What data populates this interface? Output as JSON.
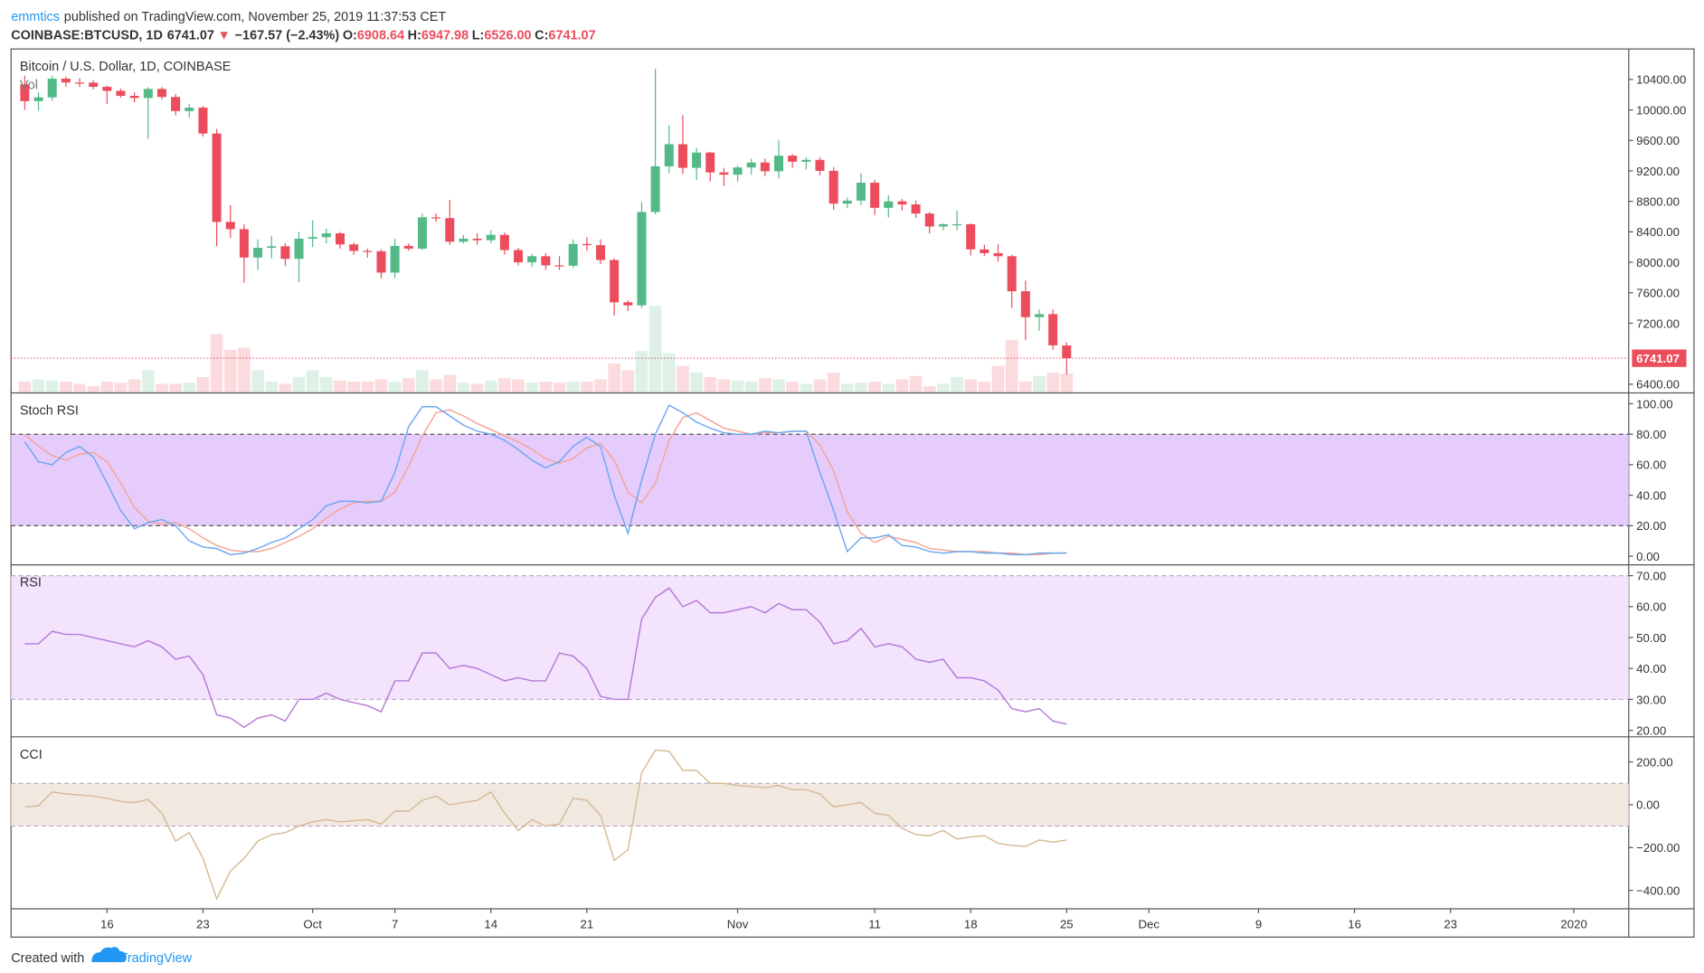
{
  "header": {
    "author": "emmtics",
    "published": "published on TradingView.com, November 25, 2019 11:37:53 CET",
    "symbol": "COINBASE:BTCUSD, 1D",
    "last": "6741.07",
    "arrow": "▼",
    "change": "−167.57 (−2.43%)",
    "ohlc": [
      {
        "key": "O:",
        "value": "6908.64"
      },
      {
        "key": "H:",
        "value": "6947.98"
      },
      {
        "key": "L:",
        "value": "6526.00"
      },
      {
        "key": "C:",
        "value": "6741.07"
      }
    ]
  },
  "chart_data": [
    {
      "type": "candlestick",
      "title": "Bitcoin / U.S. Dollar, 1D, COINBASE",
      "volume_title": "Vol",
      "x": [
        "2019-09-10",
        "2019-09-11",
        "2019-09-12",
        "2019-09-13",
        "2019-09-14",
        "2019-09-15",
        "2019-09-16",
        "2019-09-17",
        "2019-09-18",
        "2019-09-19",
        "2019-09-20",
        "2019-09-21",
        "2019-09-22",
        "2019-09-23",
        "2019-09-24",
        "2019-09-25",
        "2019-09-26",
        "2019-09-27",
        "2019-09-28",
        "2019-09-29",
        "2019-09-30",
        "2019-10-01",
        "2019-10-02",
        "2019-10-03",
        "2019-10-04",
        "2019-10-05",
        "2019-10-06",
        "2019-10-07",
        "2019-10-08",
        "2019-10-09",
        "2019-10-10",
        "2019-10-11",
        "2019-10-12",
        "2019-10-13",
        "2019-10-14",
        "2019-10-15",
        "2019-10-16",
        "2019-10-17",
        "2019-10-18",
        "2019-10-19",
        "2019-10-20",
        "2019-10-21",
        "2019-10-22",
        "2019-10-23",
        "2019-10-24",
        "2019-10-25",
        "2019-10-26",
        "2019-10-27",
        "2019-10-28",
        "2019-10-29",
        "2019-10-30",
        "2019-10-31",
        "2019-11-01",
        "2019-11-02",
        "2019-11-03",
        "2019-11-04",
        "2019-11-05",
        "2019-11-06",
        "2019-11-07",
        "2019-11-08",
        "2019-11-09",
        "2019-11-10",
        "2019-11-11",
        "2019-11-12",
        "2019-11-13",
        "2019-11-14",
        "2019-11-15",
        "2019-11-16",
        "2019-11-17",
        "2019-11-18",
        "2019-11-19",
        "2019-11-20",
        "2019-11-21",
        "2019-11-22",
        "2019-11-23",
        "2019-11-24",
        "2019-11-25"
      ],
      "open": [
        10336,
        10115,
        10165,
        10410,
        10360,
        10358,
        10303,
        10250,
        10185,
        10157,
        10275,
        10170,
        9985,
        10030,
        9690,
        8530,
        8435,
        8063,
        8190,
        8210,
        8045,
        8310,
        8330,
        8380,
        8235,
        8150,
        8145,
        7865,
        8215,
        8180,
        8590,
        8580,
        8270,
        8310,
        8290,
        8360,
        8160,
        8000,
        8080,
        7960,
        7955,
        8240,
        8225,
        8030,
        7475,
        7435,
        8660,
        9260,
        9550,
        9240,
        9440,
        9180,
        9150,
        9245,
        9310,
        9195,
        9400,
        9320,
        9345,
        9200,
        8770,
        8810,
        9045,
        8715,
        8800,
        8760,
        8640,
        8470,
        8500,
        8500,
        8170,
        8120,
        8080,
        7620,
        7280,
        7320,
        6908.64
      ],
      "high": [
        10450,
        10230,
        10450,
        10440,
        10420,
        10390,
        10320,
        10280,
        10230,
        10300,
        10300,
        10210,
        10080,
        10050,
        9750,
        8750,
        8500,
        8300,
        8350,
        8250,
        8400,
        8550,
        8440,
        8400,
        8260,
        8180,
        8170,
        8310,
        8250,
        8640,
        8640,
        8820,
        8360,
        8380,
        8420,
        8390,
        8190,
        8110,
        8120,
        8080,
        8300,
        8330,
        8300,
        8050,
        7500,
        8790,
        10540,
        9800,
        9930,
        9500,
        9450,
        9240,
        9270,
        9360,
        9360,
        9600,
        9420,
        9380,
        9380,
        9250,
        8850,
        9170,
        9080,
        8880,
        8830,
        8810,
        8660,
        8510,
        8680,
        8510,
        8230,
        8240,
        8100,
        7760,
        7380,
        7380,
        6947.98
      ],
      "low": [
        10000,
        9990,
        10120,
        10300,
        10300,
        10270,
        10080,
        10160,
        10100,
        9620,
        10140,
        9930,
        9900,
        9650,
        8210,
        8320,
        7730,
        7900,
        8050,
        7950,
        7740,
        8200,
        8250,
        8180,
        8100,
        8060,
        7790,
        7790,
        8150,
        8160,
        8530,
        8230,
        8250,
        8230,
        8250,
        8100,
        7960,
        7940,
        7900,
        7900,
        7930,
        8150,
        7980,
        7300,
        7360,
        7400,
        8630,
        9170,
        9160,
        9080,
        9060,
        9000,
        9060,
        9150,
        9130,
        9100,
        9240,
        9220,
        9140,
        8690,
        8710,
        8750,
        8620,
        8590,
        8680,
        8580,
        8380,
        8420,
        8420,
        8090,
        8080,
        8010,
        7400,
        6980,
        7100,
        6850,
        6526
      ],
      "close": [
        10115,
        10165,
        10410,
        10360,
        10358,
        10303,
        10250,
        10185,
        10157,
        10275,
        10170,
        9985,
        10030,
        9690,
        8530,
        8435,
        8063,
        8190,
        8210,
        8045,
        8310,
        8330,
        8380,
        8235,
        8150,
        8145,
        7865,
        8215,
        8180,
        8590,
        8580,
        8270,
        8310,
        8290,
        8360,
        8160,
        8000,
        8080,
        7960,
        7955,
        8240,
        8225,
        8030,
        7475,
        7435,
        8660,
        9260,
        9550,
        9240,
        9440,
        9180,
        9150,
        9245,
        9310,
        9195,
        9400,
        9320,
        9345,
        9200,
        8770,
        8810,
        9045,
        8715,
        8800,
        8760,
        8640,
        8470,
        8500,
        8500,
        8170,
        8120,
        8080,
        7620,
        7280,
        7320,
        6910,
        6741.07
      ],
      "volume": [
        10,
        12,
        11,
        10,
        8,
        6,
        10,
        9,
        12,
        20,
        8,
        8,
        9,
        14,
        52,
        38,
        40,
        20,
        10,
        8,
        14,
        20,
        14,
        11,
        10,
        10,
        12,
        10,
        13,
        20,
        12,
        16,
        9,
        8,
        11,
        13,
        12,
        9,
        10,
        9,
        10,
        10,
        12,
        26,
        20,
        37,
        77,
        35,
        24,
        18,
        14,
        12,
        11,
        10,
        13,
        12,
        10,
        8,
        12,
        18,
        8,
        9,
        10,
        8,
        12,
        15,
        6,
        8,
        14,
        12,
        10,
        24,
        47,
        10,
        15,
        18,
        17
      ],
      "up_color": "#53b987",
      "down_color": "#eb4d5c",
      "last_price": 6741.07,
      "xlim": [
        "2019-09-09",
        "2020-01-05"
      ],
      "xticks": [
        {
          "value": "2019-09-16",
          "label": "16"
        },
        {
          "value": "2019-09-23",
          "label": "23"
        },
        {
          "value": "2019-10-01",
          "label": "Oct"
        },
        {
          "value": "2019-10-07",
          "label": "7"
        },
        {
          "value": "2019-10-14",
          "label": "14"
        },
        {
          "value": "2019-10-21",
          "label": "21"
        },
        {
          "value": "2019-11-01",
          "label": "Nov"
        },
        {
          "value": "2019-11-11",
          "label": "11"
        },
        {
          "value": "2019-11-18",
          "label": "18"
        },
        {
          "value": "2019-11-25",
          "label": "25"
        },
        {
          "value": "2019-12-01",
          "label": "Dec"
        },
        {
          "value": "2019-12-09",
          "label": "9"
        },
        {
          "value": "2019-12-16",
          "label": "16"
        },
        {
          "value": "2019-12-23",
          "label": "23"
        },
        {
          "value": "2020-01-01",
          "label": "2020"
        }
      ],
      "ylim": [
        6286,
        10800
      ],
      "yticks": [
        {
          "value": 10400,
          "label": "10400.00"
        },
        {
          "value": 10000,
          "label": "10000.00"
        },
        {
          "value": 9600,
          "label": "9600.00"
        },
        {
          "value": 9200,
          "label": "9200.00"
        },
        {
          "value": 8800,
          "label": "8800.00"
        },
        {
          "value": 8400,
          "label": "8400.00"
        },
        {
          "value": 8000,
          "label": "8000.00"
        },
        {
          "value": 7600,
          "label": "7600.00"
        },
        {
          "value": 7200,
          "label": "7200.00"
        },
        {
          "value": 6400,
          "label": "6400.00"
        }
      ]
    },
    {
      "type": "line",
      "title": "Stoch RSI",
      "band": [
        20,
        80
      ],
      "band_color": "#e6ccfc",
      "ylim": [
        -5.7,
        107.1
      ],
      "yticks": [
        {
          "value": 100,
          "label": "100.00"
        },
        {
          "value": 80,
          "label": "80.00"
        },
        {
          "value": 60,
          "label": "60.00"
        },
        {
          "value": 40,
          "label": "40.00"
        },
        {
          "value": 20,
          "label": "20.00"
        },
        {
          "value": 0,
          "label": "0.00"
        }
      ],
      "series": [
        {
          "color": "#f4a393",
          "values": [
            80,
            72,
            66,
            63,
            67,
            68,
            62,
            48,
            32,
            23,
            21,
            22,
            18,
            12,
            7,
            4,
            3,
            3,
            5,
            9,
            13,
            18,
            25,
            31,
            35,
            36,
            36,
            42,
            59,
            79,
            94,
            96,
            92,
            87,
            83,
            79,
            75,
            70,
            64,
            61,
            64,
            71,
            74,
            63,
            42,
            35,
            48,
            76,
            91,
            94,
            89,
            84,
            82,
            80,
            81,
            81,
            82,
            82,
            73,
            56,
            29,
            15,
            9,
            13,
            11,
            9,
            5,
            4,
            3,
            3,
            3,
            2,
            2,
            1,
            1,
            2,
            2
          ]
        },
        {
          "color": "#6aa7f0",
          "values": [
            75,
            62,
            60,
            68,
            72,
            65,
            48,
            30,
            18,
            22,
            24,
            20,
            10,
            6,
            5,
            1,
            2,
            5,
            9,
            12,
            18,
            24,
            33,
            36,
            36,
            35,
            36,
            55,
            85,
            98,
            98,
            92,
            86,
            82,
            80,
            76,
            70,
            63,
            58,
            62,
            72,
            78,
            72,
            40,
            15,
            50,
            80,
            99,
            94,
            88,
            84,
            81,
            80,
            80,
            82,
            81,
            82,
            82,
            55,
            30,
            3,
            12,
            12,
            14,
            7,
            6,
            3,
            2,
            3,
            3,
            2,
            2,
            1,
            1,
            2,
            2,
            2
          ]
        }
      ]
    },
    {
      "type": "line",
      "title": "RSI",
      "band": [
        30,
        70
      ],
      "band_color": "#f3e3fd",
      "ylim": [
        17.9,
        73.5
      ],
      "yticks": [
        {
          "value": 70,
          "label": "70.00"
        },
        {
          "value": 60,
          "label": "60.00"
        },
        {
          "value": 50,
          "label": "50.00"
        },
        {
          "value": 40,
          "label": "40.00"
        },
        {
          "value": 30,
          "label": "30.00"
        },
        {
          "value": 20,
          "label": "20.00"
        }
      ],
      "series": [
        {
          "color": "#b57ad6",
          "values": [
            48,
            48,
            52,
            51,
            51,
            50,
            49,
            48,
            47,
            49,
            47,
            43,
            44,
            38,
            25,
            24,
            21,
            24,
            25,
            23,
            30,
            30,
            32,
            30,
            29,
            28,
            26,
            36,
            36,
            45,
            45,
            40,
            41,
            40,
            38,
            36,
            37,
            36,
            36,
            45,
            44,
            40,
            31,
            30,
            30,
            56,
            63,
            66,
            60,
            62,
            58,
            58,
            59,
            60,
            58,
            61,
            59,
            59,
            55,
            48,
            49,
            53,
            47,
            48,
            47,
            43,
            42,
            43,
            37,
            37,
            36,
            33,
            27,
            26,
            27,
            23,
            22
          ]
        }
      ]
    },
    {
      "type": "line",
      "title": "CCI",
      "band": [
        -100,
        100
      ],
      "band_color": "#f1e9e0",
      "ylim": [
        -486,
        317
      ],
      "yticks": [
        {
          "value": 200,
          "label": "200.00"
        },
        {
          "value": 0,
          "label": "0.00"
        },
        {
          "value": -200,
          "label": "−200.00"
        },
        {
          "value": -400,
          "label": "−400.00"
        }
      ],
      "series": [
        {
          "color": "#d6b996",
          "values": [
            -10,
            -5,
            60,
            50,
            45,
            40,
            30,
            15,
            10,
            25,
            -40,
            -170,
            -130,
            -250,
            -440,
            -310,
            -250,
            -170,
            -140,
            -130,
            -100,
            -80,
            -70,
            -80,
            -75,
            -70,
            -90,
            -30,
            -30,
            20,
            40,
            0,
            10,
            20,
            60,
            -40,
            -120,
            -70,
            -100,
            -90,
            30,
            20,
            -50,
            -260,
            -210,
            150,
            255,
            250,
            160,
            160,
            100,
            100,
            90,
            85,
            80,
            90,
            70,
            70,
            50,
            -10,
            0,
            10,
            -40,
            -50,
            -110,
            -140,
            -145,
            -120,
            -160,
            -150,
            -145,
            -180,
            -190,
            -195,
            -165,
            -175,
            -165
          ]
        }
      ]
    }
  ],
  "footer": {
    "created": "Created with",
    "brand": "TradingView"
  }
}
